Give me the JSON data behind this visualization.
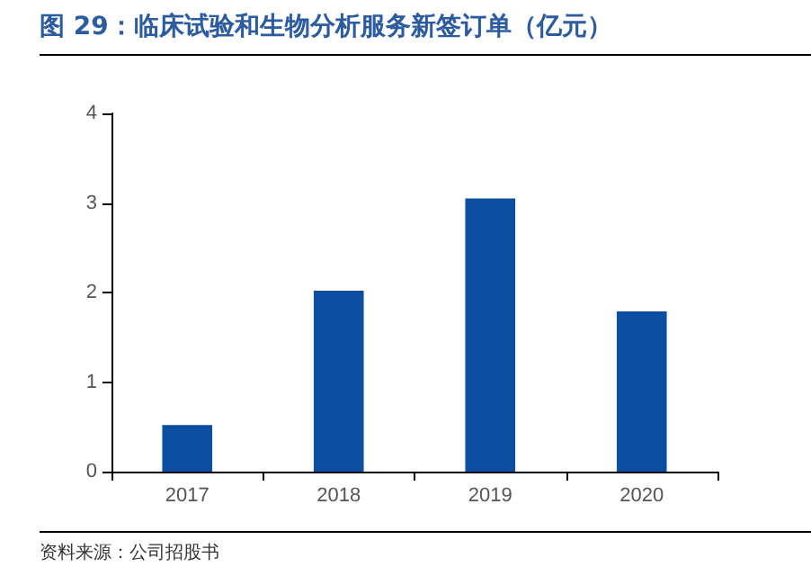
{
  "chart_data": {
    "type": "bar",
    "title": "图 29：临床试验和生物分析服务新签订单（亿元）",
    "categories": [
      "2017",
      "2018",
      "2019",
      "2020"
    ],
    "values": [
      0.52,
      2.02,
      3.05,
      1.79
    ],
    "color": "#0b4ea2",
    "ylim": [
      0,
      4
    ],
    "yticks": [
      0,
      1,
      2,
      3,
      4
    ],
    "grid": false,
    "annotations": [
      "资料来源：公司招股书"
    ]
  }
}
